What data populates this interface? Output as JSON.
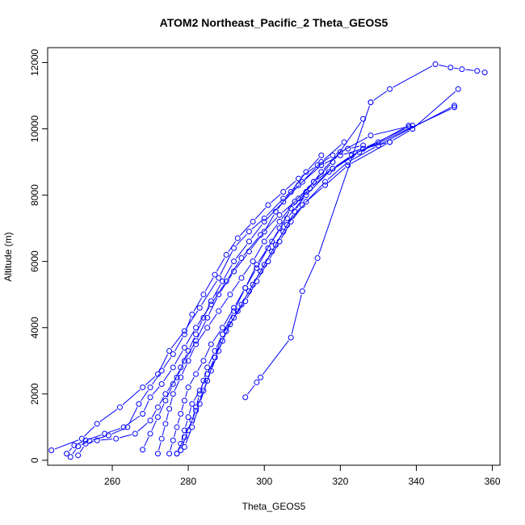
{
  "chart_data": {
    "type": "line",
    "title": "ATOM2 Northeast_Pacific_2 Theta_GEOS5",
    "xlabel": "Theta_GEOS5",
    "ylabel": "Altitude (m)",
    "xlim": [
      243,
      362
    ],
    "ylim": [
      -150,
      12450
    ],
    "x_ticks": [
      260,
      280,
      300,
      320,
      340,
      360
    ],
    "y_ticks": [
      0,
      2000,
      4000,
      6000,
      8000,
      10000,
      12000
    ],
    "grid": false,
    "point_marker": "open-circle",
    "series_color": "#0000ff",
    "series": [
      {
        "x": [
          295,
          298,
          299,
          307,
          310,
          314,
          328
        ],
        "y": [
          1900,
          2350,
          2500,
          3700,
          5100,
          6100,
          10800
        ]
      },
      {
        "x": [
          328,
          333,
          345,
          349,
          352,
          356,
          358
        ],
        "y": [
          10800,
          11200,
          11950,
          11850,
          11800,
          11750,
          11700
        ]
      },
      {
        "x": [
          244,
          252,
          256,
          262,
          268,
          272,
          275,
          279,
          283,
          288,
          292,
          296,
          300,
          305,
          309,
          315,
          320,
          326,
          333,
          339,
          351
        ],
        "y": [
          300,
          650,
          1100,
          1600,
          2200,
          2600,
          3300,
          3900,
          4600,
          5500,
          6400,
          6900,
          7300,
          7900,
          8300,
          8900,
          9200,
          9400,
          9600,
          10000,
          11200
        ]
      },
      {
        "x": [
          248,
          250,
          253,
          258,
          263,
          268,
          270,
          273,
          276,
          279,
          282,
          286,
          290,
          294,
          299,
          304,
          309,
          313,
          318,
          323,
          330,
          338
        ],
        "y": [
          200,
          450,
          600,
          800,
          1000,
          1400,
          1900,
          2300,
          2800,
          3400,
          4000,
          4700,
          5400,
          6100,
          6800,
          7400,
          7900,
          8400,
          8800,
          9200,
          9600,
          10100
        ]
      },
      {
        "x": [
          249,
          251,
          254,
          259,
          264,
          267,
          270,
          273,
          276,
          279,
          281,
          284,
          287,
          290,
          293,
          297,
          301,
          305,
          309,
          314,
          318,
          322,
          326
        ],
        "y": [
          100,
          420,
          580,
          750,
          1000,
          1700,
          2200,
          2700,
          3200,
          3800,
          4400,
          5000,
          5600,
          6200,
          6700,
          7200,
          7700,
          8100,
          8500,
          8900,
          9200,
          9400,
          9500
        ]
      },
      {
        "x": [
          251,
          253,
          256,
          261,
          266,
          270,
          272,
          274,
          277,
          279,
          282,
          285,
          288,
          292,
          296,
          300,
          303,
          307,
          311,
          315
        ],
        "y": [
          150,
          500,
          600,
          650,
          800,
          1200,
          1600,
          2000,
          2500,
          3000,
          3600,
          4300,
          5000,
          5700,
          6300,
          6900,
          7500,
          8100,
          8700,
          9200
        ]
      },
      {
        "x": [
          268,
          270,
          272,
          274,
          276,
          278,
          280,
          282,
          284,
          286,
          289,
          292,
          296,
          300,
          305,
          310,
          315,
          321
        ],
        "y": [
          320,
          800,
          1300,
          1800,
          2300,
          2800,
          3300,
          3800,
          4300,
          4800,
          5400,
          6000,
          6600,
          7200,
          7800,
          8400,
          9000,
          9600
        ]
      },
      {
        "x": [
          272,
          273,
          274,
          275,
          276,
          278,
          280,
          282,
          285,
          288,
          291,
          294,
          297,
          300,
          304,
          308,
          313,
          318,
          326
        ],
        "y": [
          200,
          650,
          1100,
          1550,
          2000,
          2500,
          3000,
          3500,
          4000,
          4500,
          5000,
          5500,
          6000,
          6600,
          7200,
          7800,
          8400,
          9000,
          10300
        ]
      },
      {
        "x": [
          275,
          276,
          277,
          278,
          279,
          280,
          282,
          284,
          286,
          289,
          292,
          295,
          298,
          301,
          304,
          307,
          312,
          318,
          326,
          338
        ],
        "y": [
          200,
          600,
          1000,
          1400,
          1800,
          2200,
          2600,
          3000,
          3500,
          4000,
          4600,
          5200,
          5800,
          6400,
          7000,
          7600,
          8200,
          8800,
          9400,
          10050
        ]
      },
      {
        "x": [
          277,
          278,
          279,
          280,
          281,
          283,
          285,
          287,
          289,
          291,
          294,
          297,
          300,
          303,
          306,
          310,
          316,
          322,
          333
        ],
        "y": [
          200,
          500,
          900,
          1300,
          1700,
          2100,
          2600,
          3100,
          3600,
          4100,
          4700,
          5300,
          5900,
          6500,
          7100,
          7700,
          8300,
          8900,
          9600
        ]
      },
      {
        "x": [
          277,
          279,
          281,
          282,
          283,
          284,
          285,
          287,
          289,
          292,
          295,
          298,
          301,
          304,
          307,
          311,
          316,
          322,
          330,
          350
        ],
        "y": [
          200,
          700,
          1200,
          1600,
          2000,
          2400,
          2800,
          3300,
          3800,
          4300,
          4800,
          5400,
          6000,
          6600,
          7200,
          7800,
          8400,
          9000,
          9500,
          10700
        ]
      },
      {
        "x": [
          278,
          280,
          282,
          284,
          286,
          288,
          290,
          293,
          296,
          299,
          302,
          305,
          308,
          311,
          315,
          320,
          328,
          339
        ],
        "y": [
          300,
          900,
          1500,
          2100,
          2700,
          3300,
          3900,
          4500,
          5100,
          5700,
          6300,
          6900,
          7500,
          8100,
          8700,
          9300,
          9800,
          10100
        ]
      },
      {
        "x": [
          279,
          281,
          283,
          285,
          287,
          289,
          292,
          295,
          298,
          302,
          306,
          311,
          317,
          325,
          350
        ],
        "y": [
          400,
          1000,
          1700,
          2400,
          3100,
          3800,
          4500,
          5200,
          5900,
          6600,
          7300,
          8000,
          8700,
          9300,
          10650
        ]
      }
    ]
  }
}
